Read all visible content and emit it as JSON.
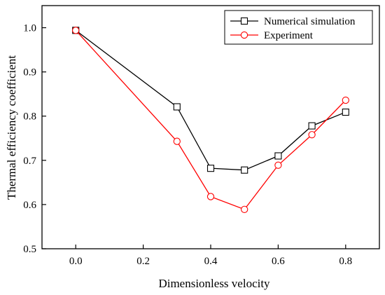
{
  "chart_data": {
    "type": "line",
    "title": "",
    "xlabel": "Dimensionless velocity",
    "ylabel": "Thermal efficiency coefficient",
    "xlim": [
      -0.1,
      0.9
    ],
    "ylim": [
      0.5,
      1.05
    ],
    "xticks": [
      "0.0",
      "0.2",
      "0.4",
      "0.6",
      "0.8"
    ],
    "yticks": [
      "0.5",
      "0.6",
      "0.7",
      "0.8",
      "0.9",
      "1.0"
    ],
    "grid": false,
    "legend_position": "top-right",
    "series": [
      {
        "name": "Numerical simulation",
        "color": "#000000",
        "marker": "square",
        "x": [
          0.0,
          0.3,
          0.4,
          0.5,
          0.6,
          0.7,
          0.8
        ],
        "y": [
          0.994,
          0.821,
          0.682,
          0.678,
          0.71,
          0.778,
          0.809
        ]
      },
      {
        "name": "Experiment",
        "color": "#ff0000",
        "marker": "circle",
        "x": [
          0.0,
          0.3,
          0.4,
          0.5,
          0.6,
          0.7,
          0.8
        ],
        "y": [
          0.994,
          0.743,
          0.618,
          0.589,
          0.689,
          0.758,
          0.836
        ]
      }
    ]
  }
}
